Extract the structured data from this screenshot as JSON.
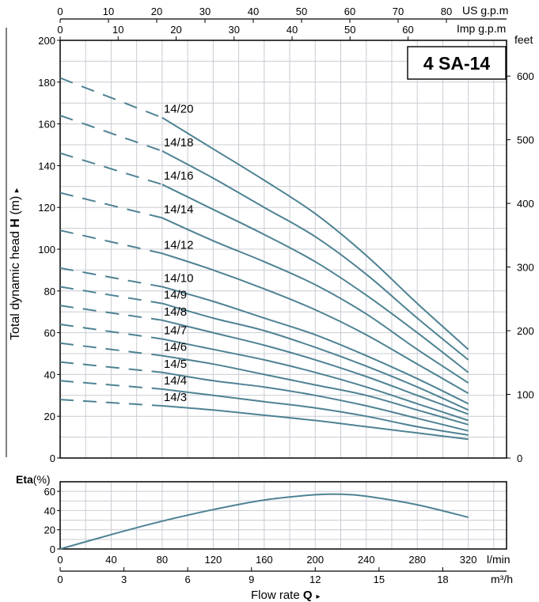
{
  "colors": {
    "curve": "#4e8293",
    "grid": "#c9ccd3",
    "axis": "#000000"
  },
  "model_box": {
    "text": "4 SA-14"
  },
  "top_axes": {
    "us_gpm": {
      "label": "US g.p.m",
      "ticks": [
        0,
        10,
        20,
        30,
        40,
        50,
        60,
        70,
        80
      ]
    },
    "imp_gpm": {
      "label": "Imp g.p.m",
      "ticks": [
        0,
        10,
        20,
        30,
        40,
        50,
        60
      ]
    }
  },
  "head_axis": {
    "label_pre": "Total dynamic head ",
    "label_bold": "H",
    "label_mid": " (m) ",
    "arrow": "▸",
    "ticks": [
      0,
      20,
      40,
      60,
      80,
      100,
      120,
      140,
      160,
      180,
      200
    ]
  },
  "feet_axis": {
    "label": "feet",
    "ticks": [
      0,
      100,
      200,
      300,
      400,
      500,
      600
    ]
  },
  "eta_axis": {
    "label_bold": "Eta",
    "label_rest": "(%)",
    "ticks": [
      0,
      20,
      40,
      60
    ]
  },
  "flow_axis": {
    "lmin_label": "l/min",
    "lmin_ticks": [
      0,
      40,
      80,
      120,
      160,
      200,
      240,
      280,
      320
    ],
    "m3h_label": "m³/h",
    "m3h_ticks": [
      0,
      3,
      6,
      9,
      12,
      15,
      18
    ],
    "title_pre": "Flow rate ",
    "title_bold": "Q",
    "arrow": "▸"
  },
  "chart_data": {
    "type": "line",
    "title": "4 SA-14",
    "xlabel": "Flow rate Q (l/min)",
    "ylabel": "Total dynamic head H (m)",
    "xlim": [
      0,
      350
    ],
    "ylim": [
      0,
      200
    ],
    "dashed_until_x": 80,
    "series": [
      {
        "name": "14/20",
        "x": [
          0,
          80,
          120,
          160,
          200,
          240,
          280,
          320
        ],
        "values": [
          182,
          163,
          148,
          133,
          117,
          97,
          74,
          52
        ]
      },
      {
        "name": "14/18",
        "x": [
          0,
          80,
          120,
          160,
          200,
          240,
          280,
          320
        ],
        "values": [
          164,
          147,
          134,
          120,
          106,
          88,
          67,
          47
        ]
      },
      {
        "name": "14/16",
        "x": [
          0,
          80,
          120,
          160,
          200,
          240,
          280,
          320
        ],
        "values": [
          146,
          131,
          119,
          107,
          94,
          78,
          60,
          41
        ]
      },
      {
        "name": "14/14",
        "x": [
          0,
          80,
          120,
          160,
          200,
          240,
          280,
          320
        ],
        "values": [
          127,
          115,
          104,
          94,
          83,
          69,
          52,
          36
        ]
      },
      {
        "name": "14/12",
        "x": [
          0,
          80,
          120,
          160,
          200,
          240,
          280,
          320
        ],
        "values": [
          109,
          98,
          90,
          81,
          71,
          59,
          45,
          31
        ]
      },
      {
        "name": "14/10",
        "x": [
          0,
          80,
          120,
          160,
          200,
          240,
          280,
          320
        ],
        "values": [
          91,
          82,
          75,
          67,
          59,
          49,
          38,
          26
        ]
      },
      {
        "name": "14/9",
        "x": [
          0,
          80,
          120,
          160,
          200,
          240,
          280,
          320
        ],
        "values": [
          82,
          74,
          67,
          61,
          53,
          44,
          34,
          23
        ]
      },
      {
        "name": "14/8",
        "x": [
          0,
          80,
          120,
          160,
          200,
          240,
          280,
          320
        ],
        "values": [
          73,
          66,
          60,
          54,
          47,
          39,
          30,
          21
        ]
      },
      {
        "name": "14/7",
        "x": [
          0,
          80,
          120,
          160,
          200,
          240,
          280,
          320
        ],
        "values": [
          64,
          57,
          52,
          47,
          41,
          34,
          26,
          18
        ]
      },
      {
        "name": "14/6",
        "x": [
          0,
          80,
          120,
          160,
          200,
          240,
          280,
          320
        ],
        "values": [
          55,
          49,
          45,
          40,
          35,
          30,
          23,
          16
        ]
      },
      {
        "name": "14/5",
        "x": [
          0,
          80,
          120,
          160,
          200,
          240,
          280,
          320
        ],
        "values": [
          46,
          41,
          37,
          34,
          30,
          25,
          19,
          13
        ]
      },
      {
        "name": "14/4",
        "x": [
          0,
          80,
          120,
          160,
          200,
          240,
          280,
          320
        ],
        "values": [
          37,
          33,
          30,
          27,
          24,
          20,
          15,
          11
        ]
      },
      {
        "name": "14/3",
        "x": [
          0,
          80,
          120,
          160,
          200,
          240,
          280,
          320
        ],
        "values": [
          28,
          25,
          23,
          20.5,
          18,
          15,
          12,
          9
        ]
      }
    ],
    "efficiency": {
      "name": "Eta",
      "x": [
        0,
        40,
        80,
        120,
        160,
        200,
        220,
        240,
        280,
        320
      ],
      "values": [
        0,
        15,
        29,
        41,
        51,
        56.5,
        57,
        55,
        46,
        33
      ],
      "ylim": [
        0,
        70
      ]
    }
  }
}
